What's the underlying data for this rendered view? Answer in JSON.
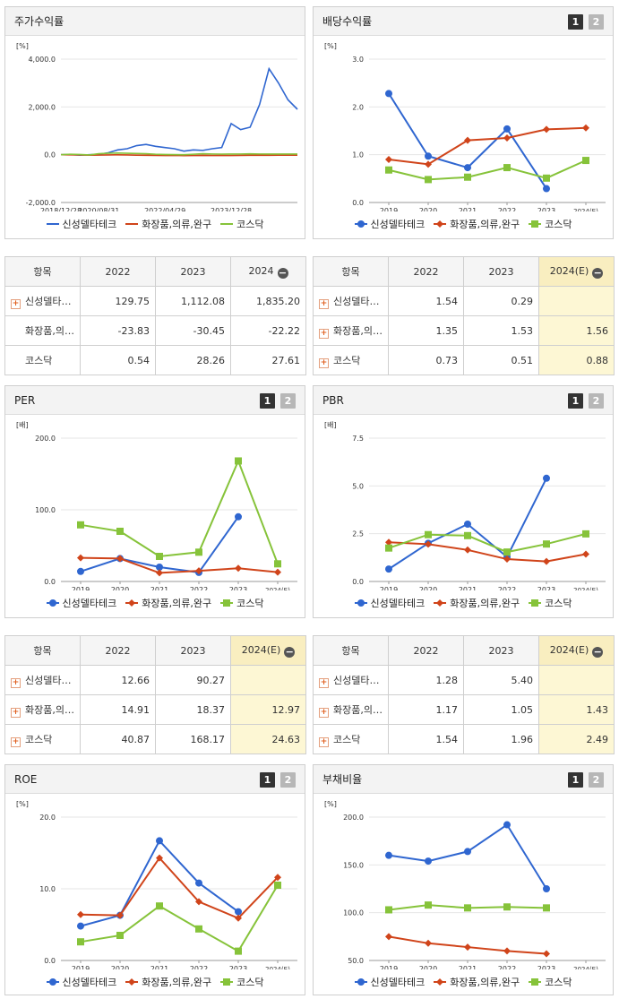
{
  "legend_names": [
    "신성델타테크",
    "화장품,의류,완구",
    "코스닥"
  ],
  "colors": {
    "blue": "#2f66d0",
    "orange": "#d0441a",
    "green": "#86c33a"
  },
  "btn1": "1",
  "btn2": "2",
  "header_item": "항목",
  "charts": {
    "price": {
      "title": "주가수익률",
      "unit": "[%]",
      "yticks": [
        "4,000.0",
        "2,000.0",
        "0.0",
        "-2,000.0"
      ],
      "xticks": [
        "2018/12/28",
        "2020/08/31",
        "2022/04/29",
        "2023/12/28"
      ]
    },
    "div": {
      "title": "배당수익률",
      "unit": "[%]",
      "yticks": [
        "3.0",
        "2.0",
        "1.0",
        "0.0"
      ],
      "xticks": [
        "2019",
        "2020",
        "2021",
        "2022",
        "2023",
        "2024(E)"
      ]
    },
    "per": {
      "title": "PER",
      "unit": "[배]",
      "yticks": [
        "200.0",
        "100.0",
        "0.0"
      ],
      "xticks": [
        "2019",
        "2020",
        "2021",
        "2022",
        "2023",
        "2024(E)"
      ]
    },
    "pbr": {
      "title": "PBR",
      "unit": "[배]",
      "yticks": [
        "7.5",
        "5.0",
        "2.5",
        "0.0"
      ],
      "xticks": [
        "2019",
        "2020",
        "2021",
        "2022",
        "2023",
        "2024(E)"
      ]
    },
    "roe": {
      "title": "ROE",
      "unit": "[%]",
      "yticks": [
        "20.0",
        "10.0",
        "0.0"
      ],
      "xticks": [
        "2019",
        "2020",
        "2021",
        "2022",
        "2023",
        "2024(E)"
      ]
    },
    "debt": {
      "title": "부채비율",
      "unit": "[%]",
      "yticks": [
        "200.0",
        "150.0",
        "100.0",
        "50.0"
      ],
      "xticks": [
        "2019",
        "2020",
        "2021",
        "2022",
        "2023",
        "2024(E)"
      ]
    }
  },
  "chart_data": [
    {
      "id": "price",
      "type": "line",
      "ylim": [
        -2000,
        4000
      ],
      "x": [
        "2018/12/28",
        "2019/06",
        "2019/12",
        "2020/06",
        "2020/08/31",
        "2020/12",
        "2021/03",
        "2021/06",
        "2021/09",
        "2021/12",
        "2022/03",
        "2022/04/29",
        "2022/08",
        "2022/12",
        "2023/03",
        "2023/06",
        "2023/09",
        "2023/11",
        "2023/12/28",
        "2024/02",
        "2024/04",
        "2024/06",
        "2024/08",
        "2024/09",
        "2024/10",
        "2024/11"
      ],
      "series": [
        {
          "name": "신성델타테크",
          "color": "blue",
          "values": [
            0,
            10,
            -20,
            0,
            20,
            80,
            200,
            250,
            380,
            430,
            350,
            300,
            250,
            150,
            200,
            180,
            250,
            300,
            1300,
            1050,
            1150,
            2100,
            3600,
            3000,
            2300,
            1900
          ]
        },
        {
          "name": "화장품,의류,완구",
          "color": "orange",
          "values": [
            0,
            -5,
            -10,
            -20,
            -15,
            -10,
            -5,
            -10,
            -20,
            -25,
            -30,
            -35,
            -30,
            -40,
            -35,
            -30,
            -35,
            -30,
            -35,
            -30,
            -25,
            -25,
            -25,
            -22,
            -22,
            -22
          ]
        },
        {
          "name": "코스닥",
          "color": "green",
          "values": [
            0,
            20,
            10,
            -10,
            40,
            60,
            70,
            60,
            50,
            40,
            20,
            10,
            5,
            0,
            20,
            40,
            30,
            25,
            28,
            30,
            35,
            30,
            28,
            27,
            27,
            27
          ]
        }
      ]
    },
    {
      "id": "div",
      "type": "line",
      "ylim": [
        0,
        3
      ],
      "x": [
        "2019",
        "2020",
        "2021",
        "2022",
        "2023",
        "2024(E)"
      ],
      "series": [
        {
          "name": "신성델타테크",
          "color": "blue",
          "marker": "circle",
          "values": [
            2.28,
            0.97,
            0.73,
            1.54,
            0.29,
            null
          ]
        },
        {
          "name": "화장품,의류,완구",
          "color": "orange",
          "marker": "diamond",
          "values": [
            0.9,
            0.8,
            1.3,
            1.35,
            1.53,
            1.56
          ]
        },
        {
          "name": "코스닥",
          "color": "green",
          "marker": "square",
          "values": [
            0.68,
            0.48,
            0.53,
            0.73,
            0.51,
            0.88
          ]
        }
      ]
    },
    {
      "id": "per",
      "type": "line",
      "ylim": [
        0,
        200
      ],
      "x": [
        "2019",
        "2020",
        "2021",
        "2022",
        "2023",
        "2024(E)"
      ],
      "series": [
        {
          "name": "신성델타테크",
          "color": "blue",
          "marker": "circle",
          "values": [
            14,
            32,
            20,
            12.66,
            90.27,
            null
          ]
        },
        {
          "name": "화장품,의류,완구",
          "color": "orange",
          "marker": "diamond",
          "values": [
            33,
            32,
            12,
            14.91,
            18.37,
            12.97
          ]
        },
        {
          "name": "코스닥",
          "color": "green",
          "marker": "square",
          "values": [
            79,
            70,
            35,
            40.87,
            168.17,
            24.63
          ]
        }
      ]
    },
    {
      "id": "pbr",
      "type": "line",
      "ylim": [
        0,
        7.5
      ],
      "x": [
        "2019",
        "2020",
        "2021",
        "2022",
        "2023",
        "2024(E)"
      ],
      "series": [
        {
          "name": "신성델타테크",
          "color": "blue",
          "marker": "circle",
          "values": [
            0.65,
            2.0,
            3.0,
            1.28,
            5.4,
            null
          ]
        },
        {
          "name": "화장품,의류,완구",
          "color": "orange",
          "marker": "diamond",
          "values": [
            2.05,
            1.95,
            1.65,
            1.17,
            1.05,
            1.43
          ]
        },
        {
          "name": "코스닥",
          "color": "green",
          "marker": "square",
          "values": [
            1.75,
            2.45,
            2.4,
            1.54,
            1.96,
            2.49
          ]
        }
      ]
    },
    {
      "id": "roe",
      "type": "line",
      "ylim": [
        0,
        20
      ],
      "x": [
        "2019",
        "2020",
        "2021",
        "2022",
        "2023",
        "2024(E)"
      ],
      "series": [
        {
          "name": "신성델타테크",
          "color": "blue",
          "marker": "circle",
          "values": [
            4.8,
            6.3,
            16.7,
            10.8,
            6.8,
            null
          ]
        },
        {
          "name": "화장품,의류,완구",
          "color": "orange",
          "marker": "diamond",
          "values": [
            6.4,
            6.3,
            14.3,
            8.2,
            5.9,
            11.6
          ]
        },
        {
          "name": "코스닥",
          "color": "green",
          "marker": "square",
          "values": [
            2.6,
            3.5,
            7.6,
            4.4,
            1.3,
            10.5
          ]
        }
      ]
    },
    {
      "id": "debt",
      "type": "line",
      "ylim": [
        50,
        200
      ],
      "x": [
        "2019",
        "2020",
        "2021",
        "2022",
        "2023",
        "2024(E)"
      ],
      "series": [
        {
          "name": "신성델타테크",
          "color": "blue",
          "marker": "circle",
          "values": [
            160,
            154,
            164,
            192,
            125,
            null
          ]
        },
        {
          "name": "화장품,의류,완구",
          "color": "orange",
          "marker": "diamond",
          "values": [
            75,
            68,
            64,
            60,
            57,
            null
          ]
        },
        {
          "name": "코스닥",
          "color": "green",
          "marker": "square",
          "values": [
            103,
            108,
            105,
            106,
            105,
            null
          ]
        }
      ]
    }
  ],
  "tables": {
    "price": {
      "cols": [
        "2022",
        "2023",
        "2024"
      ],
      "rows": [
        {
          "name": "신성델타…",
          "plus": true,
          "values": [
            "129.75",
            "1,112.08",
            "1,835.20"
          ]
        },
        {
          "name": "화장품,의…",
          "plus": false,
          "values": [
            "-23.83",
            "-30.45",
            "-22.22"
          ]
        },
        {
          "name": "코스닥",
          "plus": false,
          "values": [
            "0.54",
            "28.26",
            "27.61"
          ]
        }
      ]
    },
    "div": {
      "cols": [
        "2022",
        "2023",
        "2024(E)"
      ],
      "rows": [
        {
          "name": "신성델타…",
          "plus": true,
          "values": [
            "1.54",
            "0.29",
            ""
          ]
        },
        {
          "name": "화장품,의…",
          "plus": true,
          "values": [
            "1.35",
            "1.53",
            "1.56"
          ]
        },
        {
          "name": "코스닥",
          "plus": true,
          "values": [
            "0.73",
            "0.51",
            "0.88"
          ]
        }
      ]
    },
    "per": {
      "cols": [
        "2022",
        "2023",
        "2024(E)"
      ],
      "rows": [
        {
          "name": "신성델타…",
          "plus": true,
          "values": [
            "12.66",
            "90.27",
            ""
          ]
        },
        {
          "name": "화장품,의…",
          "plus": true,
          "values": [
            "14.91",
            "18.37",
            "12.97"
          ]
        },
        {
          "name": "코스닥",
          "plus": true,
          "values": [
            "40.87",
            "168.17",
            "24.63"
          ]
        }
      ]
    },
    "pbr": {
      "cols": [
        "2022",
        "2023",
        "2024(E)"
      ],
      "rows": [
        {
          "name": "신성델타…",
          "plus": true,
          "values": [
            "1.28",
            "5.40",
            ""
          ]
        },
        {
          "name": "화장품,의…",
          "plus": true,
          "values": [
            "1.17",
            "1.05",
            "1.43"
          ]
        },
        {
          "name": "코스닥",
          "plus": true,
          "values": [
            "1.54",
            "1.96",
            "2.49"
          ]
        }
      ]
    }
  }
}
